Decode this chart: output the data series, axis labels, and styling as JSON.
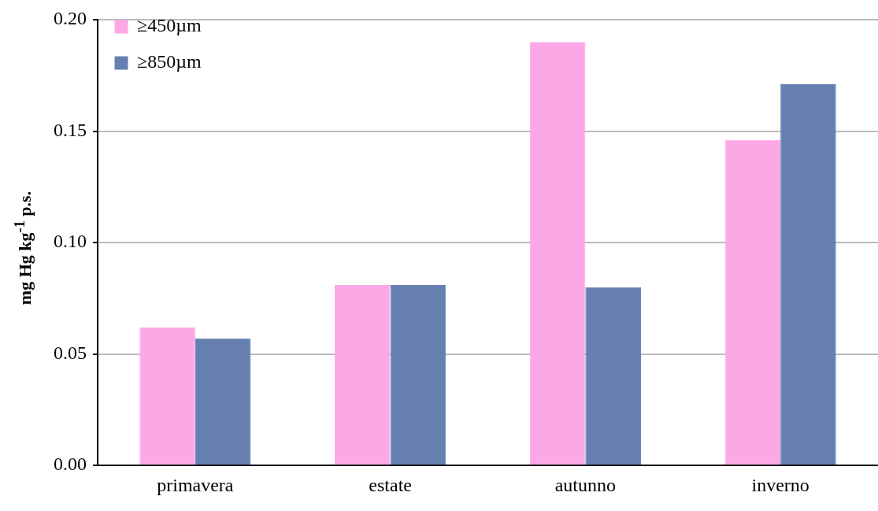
{
  "chart_data": {
    "type": "bar",
    "ylabel": "mg Hg kg$^{-1}$ p.s.",
    "categories": [
      "primavera",
      "estate",
      "autunno",
      "inverno"
    ],
    "series": [
      {
        "name": "≥450µm",
        "color": "#fca8e6",
        "values": [
          0.062,
          0.081,
          0.19,
          0.146
        ]
      },
      {
        "name": "≥850µm",
        "color": "#6580b0",
        "values": [
          0.057,
          0.081,
          0.08,
          0.171
        ]
      }
    ],
    "ylim": [
      0,
      0.2
    ],
    "yticks": [
      {
        "value": 0,
        "label": "0.00"
      },
      {
        "value": 0.05,
        "label": "0.05"
      },
      {
        "value": 0.1,
        "label": "0.10"
      },
      {
        "value": 0.15,
        "label": "0.15"
      },
      {
        "value": 0.2,
        "label": "0.20"
      }
    ],
    "grid": "y",
    "legend": "top left"
  }
}
